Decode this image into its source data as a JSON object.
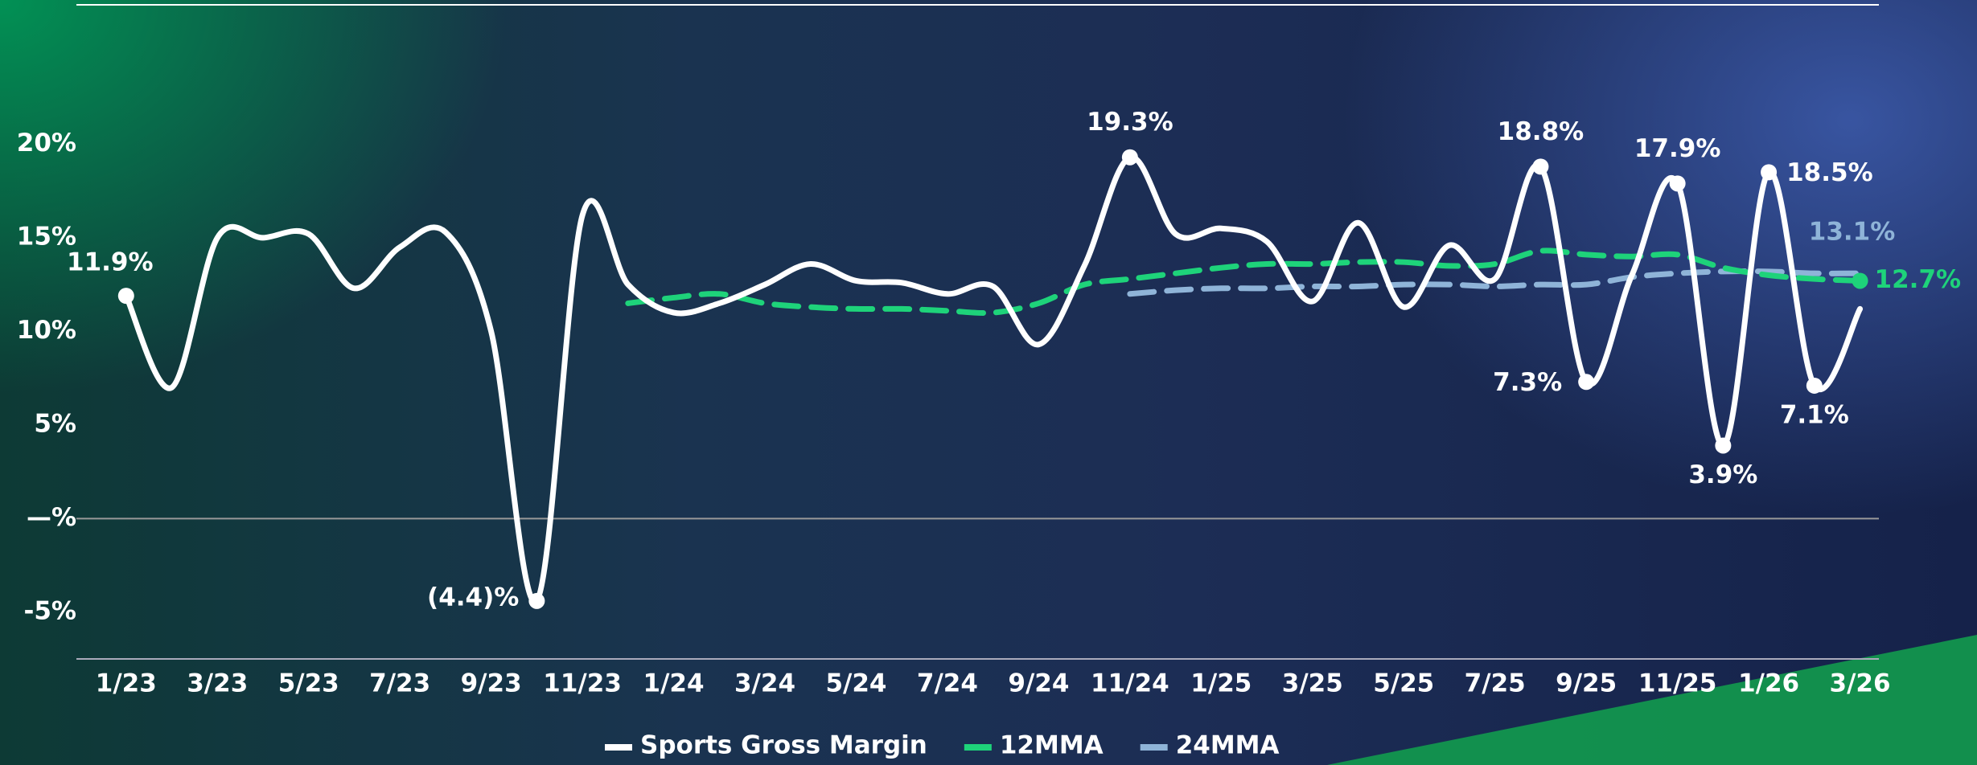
{
  "chart_data": {
    "type": "line",
    "categories": [
      "1/23",
      null,
      "3/23",
      null,
      "5/23",
      null,
      "7/23",
      null,
      "9/23",
      null,
      "11/23",
      null,
      "1/24",
      null,
      "3/24",
      null,
      "5/24",
      null,
      "7/24",
      null,
      "9/24",
      null,
      "11/24",
      null,
      "1/25",
      null,
      "3/25",
      null,
      "5/25",
      null,
      "7/25",
      null,
      "9/25",
      null,
      "11/25",
      null,
      "1/26",
      null,
      "3/26"
    ],
    "series": [
      {
        "name": "Sports Gross Margin",
        "color": "#ffffff",
        "values": [
          11.9,
          7.0,
          15.0,
          15.0,
          15.2,
          12.3,
          14.5,
          15.3,
          10.0,
          -4.4,
          16.2,
          12.5,
          11.0,
          11.5,
          12.5,
          13.6,
          12.7,
          12.6,
          12.0,
          12.4,
          9.3,
          13.5,
          19.3,
          15.2,
          15.5,
          14.8,
          11.6,
          15.8,
          11.3,
          14.6,
          12.8,
          18.8,
          7.3,
          13.0,
          17.9,
          3.9,
          18.5,
          7.1,
          11.2
        ],
        "value_labels": [
          "11.9%",
          null,
          null,
          null,
          null,
          null,
          null,
          null,
          null,
          "(4.4)%",
          null,
          null,
          null,
          null,
          null,
          null,
          null,
          null,
          null,
          null,
          null,
          null,
          "19.3%",
          null,
          null,
          null,
          null,
          null,
          null,
          null,
          null,
          "18.8%",
          "7.3%",
          null,
          "17.9%",
          "3.9%",
          "18.5%",
          "7.1%",
          null
        ]
      },
      {
        "name": "12MMA",
        "color": "#1ed37a",
        "values": [
          null,
          null,
          null,
          null,
          null,
          null,
          null,
          null,
          null,
          null,
          null,
          11.5,
          11.8,
          12.0,
          11.5,
          11.3,
          11.2,
          11.2,
          11.1,
          11.0,
          11.5,
          12.5,
          12.8,
          13.1,
          13.4,
          13.6,
          13.6,
          13.7,
          13.7,
          13.5,
          13.6,
          14.3,
          14.1,
          14.0,
          14.1,
          13.4,
          13.0,
          12.8,
          12.7
        ],
        "value_labels": [
          null,
          null,
          null,
          null,
          null,
          null,
          null,
          null,
          null,
          null,
          null,
          null,
          null,
          null,
          null,
          null,
          null,
          null,
          null,
          null,
          null,
          null,
          null,
          null,
          null,
          null,
          null,
          null,
          null,
          null,
          null,
          null,
          null,
          null,
          null,
          null,
          null,
          null,
          "12.7%"
        ]
      },
      {
        "name": "24MMA",
        "color": "#8fb4d8",
        "values": [
          null,
          null,
          null,
          null,
          null,
          null,
          null,
          null,
          null,
          null,
          null,
          null,
          null,
          null,
          null,
          null,
          null,
          null,
          null,
          null,
          null,
          null,
          12.0,
          12.2,
          12.3,
          12.3,
          12.4,
          12.4,
          12.5,
          12.5,
          12.4,
          12.5,
          12.5,
          12.9,
          13.1,
          13.2,
          13.2,
          13.1,
          13.1
        ],
        "value_labels": [
          null,
          null,
          null,
          null,
          null,
          null,
          null,
          null,
          null,
          null,
          null,
          null,
          null,
          null,
          null,
          null,
          null,
          null,
          null,
          null,
          null,
          null,
          null,
          null,
          null,
          null,
          null,
          null,
          null,
          null,
          null,
          null,
          null,
          null,
          null,
          null,
          null,
          null,
          "13.1%"
        ]
      }
    ],
    "ylim": [
      -7.5,
      27.5
    ],
    "yticks": [
      {
        "value": -5,
        "label": "-5%"
      },
      {
        "value": 0,
        "label": "—%"
      },
      {
        "value": 5,
        "label": "5%"
      },
      {
        "value": 10,
        "label": "10%"
      },
      {
        "value": 15,
        "label": "15%"
      },
      {
        "value": 20,
        "label": "20%"
      }
    ],
    "legend": "bottom"
  }
}
